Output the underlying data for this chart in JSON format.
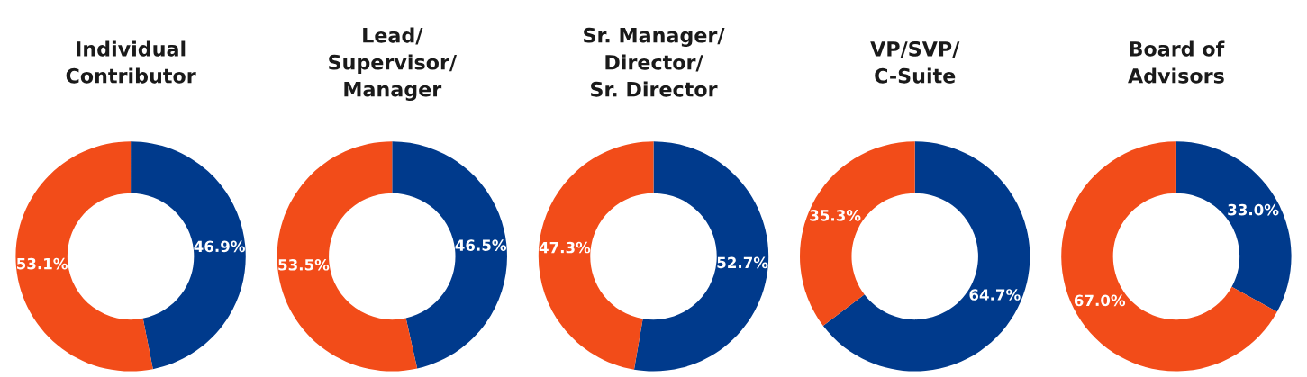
{
  "chart_data": [
    {
      "type": "donut",
      "title": "Individual\nContributor",
      "categories": [
        null,
        null
      ],
      "values": [
        46.9,
        53.1
      ],
      "colors": [
        "#003a8c",
        "#f24c19"
      ],
      "value_labels": [
        "46.9%",
        "53.1%"
      ]
    },
    {
      "type": "donut",
      "title": "Lead/\nSupervisor/\nManager",
      "categories": [
        null,
        null
      ],
      "values": [
        46.5,
        53.5
      ],
      "colors": [
        "#003a8c",
        "#f24c19"
      ],
      "value_labels": [
        "46.5%",
        "53.5%"
      ]
    },
    {
      "type": "donut",
      "title": "Sr. Manager/\nDirector/\nSr. Director",
      "categories": [
        null,
        null
      ],
      "values": [
        52.7,
        47.3
      ],
      "colors": [
        "#003a8c",
        "#f24c19"
      ],
      "value_labels": [
        "52.7%",
        "47.3%"
      ]
    },
    {
      "type": "donut",
      "title": "VP/SVP/\nC-Suite",
      "categories": [
        null,
        null
      ],
      "values": [
        64.7,
        35.3
      ],
      "colors": [
        "#003a8c",
        "#f24c19"
      ],
      "value_labels": [
        "64.7%",
        "35.3%"
      ]
    },
    {
      "type": "donut",
      "title": "Board of\nAdvisors",
      "categories": [
        null,
        null
      ],
      "values": [
        33.0,
        67.0
      ],
      "colors": [
        "#003a8c",
        "#f24c19"
      ],
      "value_labels": [
        "33.0%",
        "67.0%"
      ]
    }
  ]
}
